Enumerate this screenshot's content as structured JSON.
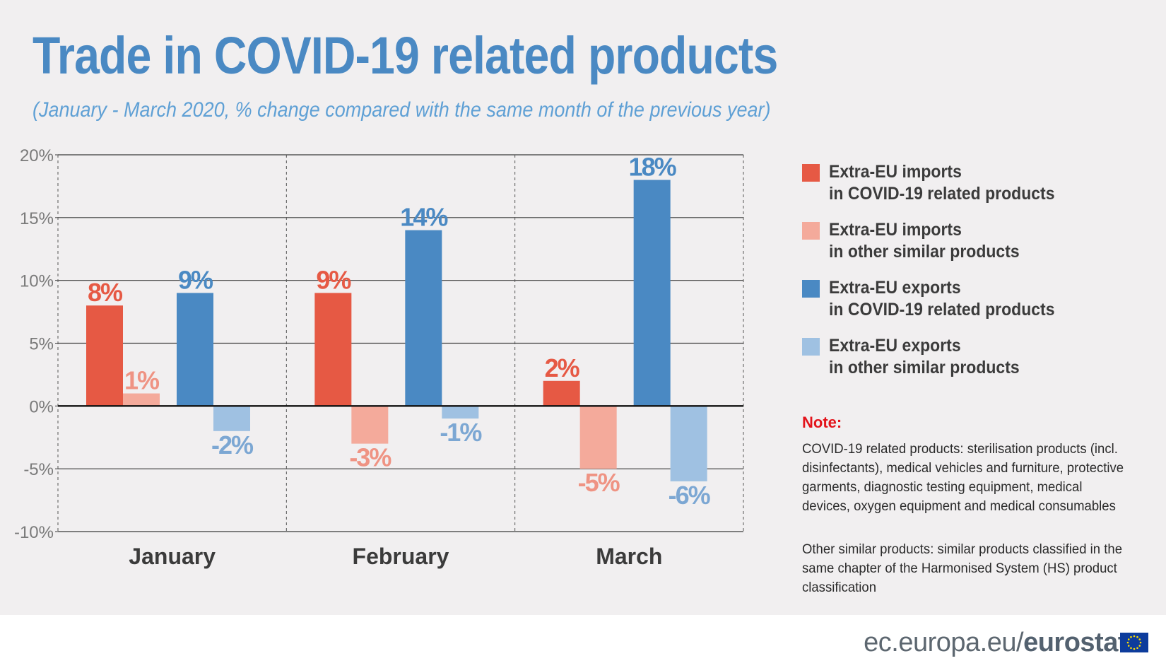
{
  "title": "Trade in COVID-19 related products",
  "subtitle": "(January - March 2020, % change compared with the same month of the previous year)",
  "chart_data": {
    "type": "bar",
    "categories": [
      "January",
      "February",
      "March"
    ],
    "ylim": [
      -10,
      20
    ],
    "yticks": [
      20,
      15,
      10,
      5,
      0,
      -5,
      -10
    ],
    "ytick_labels": [
      "20%",
      "15%",
      "10%",
      "5%",
      "0%",
      "-5%",
      "-10%"
    ],
    "series": [
      {
        "name": "Extra-EU imports in COVID-19 related products",
        "color": "#e65944",
        "label_color": "#e65944",
        "values": [
          8,
          9,
          2
        ],
        "labels": [
          "8%",
          "9%",
          "2%"
        ]
      },
      {
        "name": "Extra-EU imports in other similar products",
        "color": "#f4aa9b",
        "label_color": "#ef9383",
        "values": [
          1,
          -3,
          -5
        ],
        "labels": [
          "1%",
          "-3%",
          "-5%"
        ]
      },
      {
        "name": "Extra-EU exports in COVID-19 related products",
        "color": "#4a89c3",
        "label_color": "#4a89c3",
        "values": [
          9,
          14,
          18
        ],
        "labels": [
          "9%",
          "14%",
          "18%"
        ]
      },
      {
        "name": "Extra-EU exports in other similar products",
        "color": "#9fc1e2",
        "label_color": "#7ca7d3",
        "values": [
          -2,
          -1,
          -6
        ],
        "labels": [
          "-2%",
          "-1%",
          "-6%"
        ]
      }
    ],
    "legend_position": "right"
  },
  "legend": [
    {
      "line1": "Extra-EU imports",
      "line2": "in COVID-19 related products",
      "color": "#e65944"
    },
    {
      "line1": "Extra-EU imports",
      "line2": "in other similar products",
      "color": "#f4aa9b"
    },
    {
      "line1": "Extra-EU exports",
      "line2": "in COVID-19 related products",
      "color": "#4a89c3"
    },
    {
      "line1": "Extra-EU exports",
      "line2": "in other similar products",
      "color": "#9fc1e2"
    }
  ],
  "note": {
    "heading": "Note:",
    "p1": "COVID-19 related products: sterilisation products (incl. disinfectants), medical vehicles and furniture, protective garments, diagnostic testing equipment, medical devices, oxygen equipment and medical consumables",
    "p2": "Other similar products: similar products classified in the same chapter of the Harmonised System (HS) product classification"
  },
  "footer": {
    "prefix": "ec.europa.eu/",
    "brand": "eurostat"
  }
}
